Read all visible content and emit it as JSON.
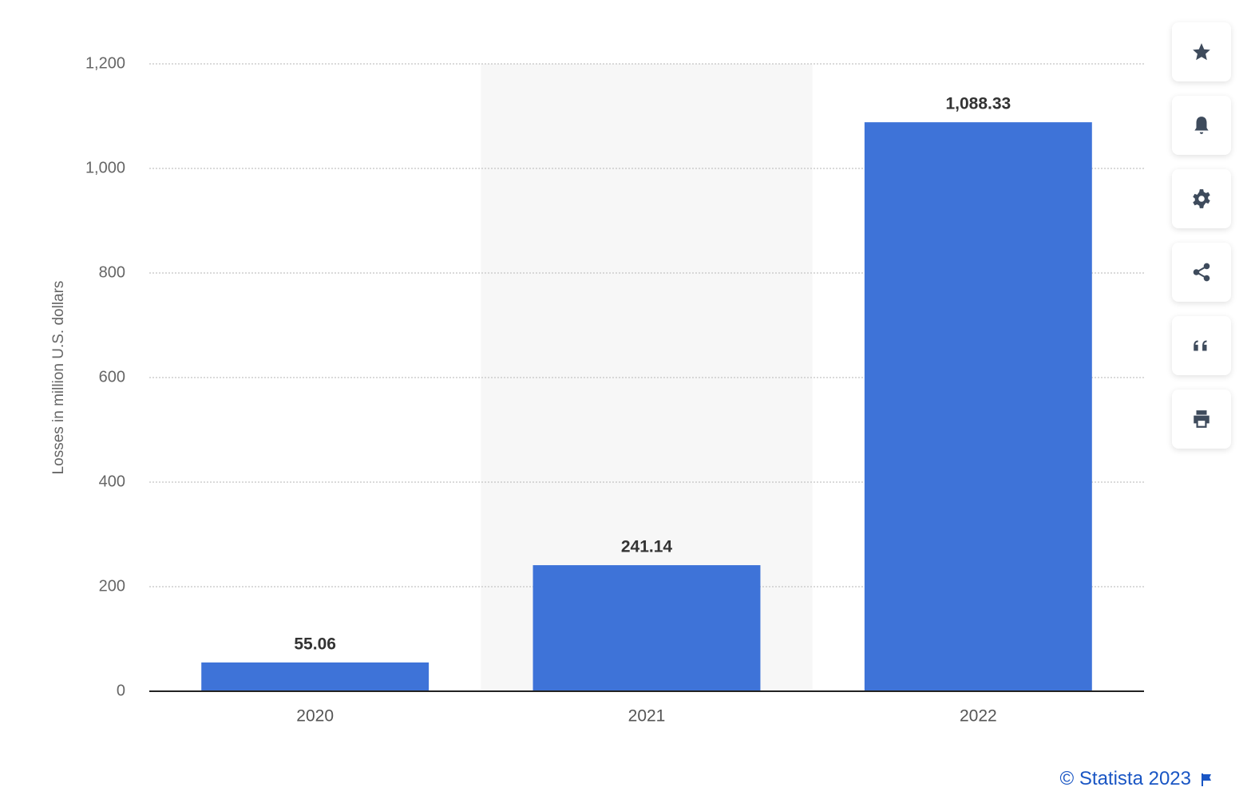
{
  "chart_data": {
    "type": "bar",
    "y_axis_label": "Losses in million U.S. dollars",
    "categories": [
      "2020",
      "2021",
      "2022"
    ],
    "values": [
      55.06,
      241.14,
      1088.33
    ],
    "value_labels": [
      "55.06",
      "241.14",
      "1,088.33"
    ],
    "color": "#3e73d8",
    "ylim": [
      0,
      1200
    ],
    "yticks": [
      0,
      200,
      400,
      600,
      800,
      {
        "value": 1000,
        "label": "1,000"
      },
      {
        "value": 1200,
        "label": "1,200"
      }
    ],
    "grid": true,
    "highlight_category": 1,
    "credit": "© Statista 2023"
  }
}
